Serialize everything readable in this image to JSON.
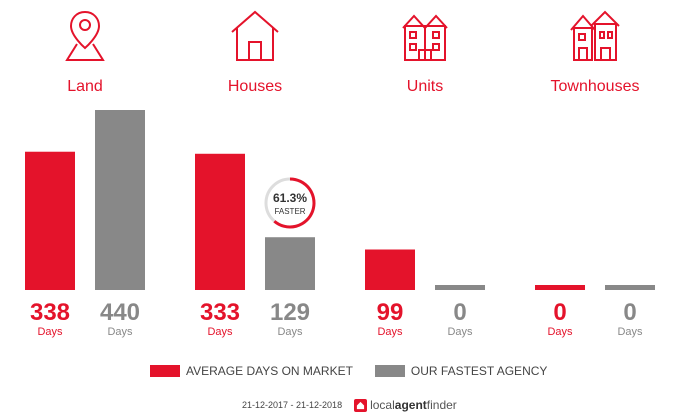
{
  "chart_data": {
    "type": "bar",
    "categories": [
      "Land",
      "Houses",
      "Units",
      "Townhouses"
    ],
    "series": [
      {
        "name": "AVERAGE DAYS ON MARKET",
        "values": [
          338,
          333,
          99,
          0
        ],
        "color": "#e4132b"
      },
      {
        "name": "OUR FASTEST AGENCY",
        "values": [
          440,
          129,
          0,
          0
        ],
        "color": "#888888"
      }
    ],
    "value_unit": "Days",
    "badge": {
      "percent": "61.3%",
      "text": "FASTER",
      "category": "Houses"
    },
    "category_icons": [
      "location-pin-icon",
      "house-icon",
      "units-icon",
      "townhouses-icon"
    ],
    "accent_color": "#e4132b",
    "secondary_color": "#888888"
  },
  "legend": {
    "primary_label": "AVERAGE DAYS ON MARKET",
    "secondary_label": "OUR FASTEST AGENCY"
  },
  "footer": {
    "date_range": "21-12-2017 - 21-12-2018",
    "brand_local": "local",
    "brand_agent": "agent",
    "brand_finder": "finder"
  }
}
